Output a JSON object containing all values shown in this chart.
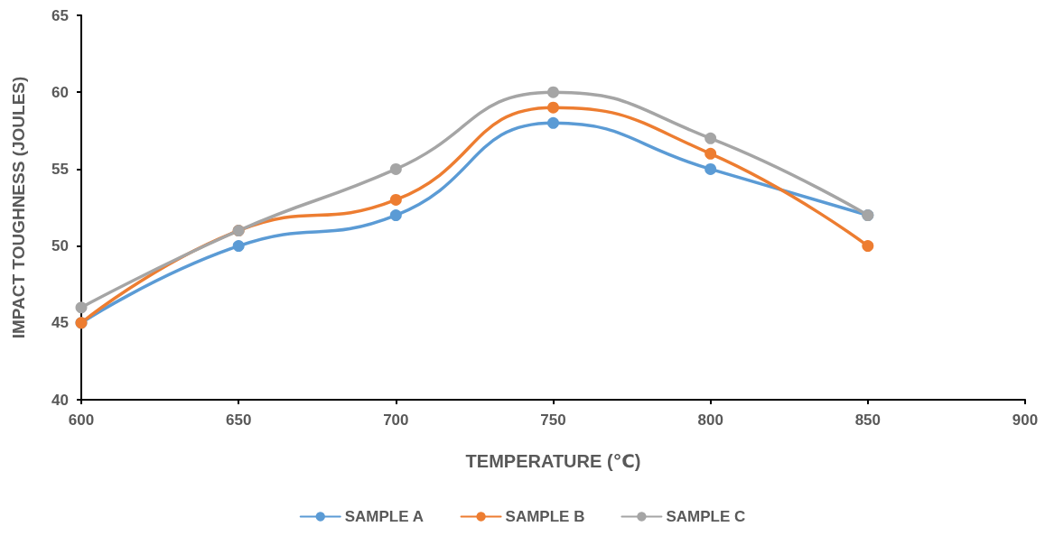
{
  "chart_data": {
    "type": "line",
    "xlabel": "TEMPERATURE (℃)",
    "ylabel": "IMPACT TOUGHNESS (JOULES)",
    "x": [
      600,
      650,
      700,
      750,
      800,
      850
    ],
    "series": [
      {
        "name": "SAMPLE A",
        "color": "#5b9bd5",
        "values": [
          45,
          50,
          52,
          58,
          55,
          52
        ]
      },
      {
        "name": "SAMPLE B",
        "color": "#ed7d31",
        "values": [
          45,
          51,
          53,
          59,
          56,
          50
        ]
      },
      {
        "name": "SAMPLE C",
        "color": "#a5a5a5",
        "values": [
          46,
          51,
          55,
          60,
          57,
          52
        ]
      }
    ],
    "xlim": [
      600,
      900
    ],
    "xticks": [
      600,
      650,
      700,
      750,
      800,
      850,
      900
    ],
    "ylim": [
      40,
      65
    ],
    "yticks": [
      40,
      45,
      50,
      55,
      60,
      65
    ],
    "grid": false,
    "legend": "bottom",
    "marker": "circle",
    "line_style": "solid"
  }
}
